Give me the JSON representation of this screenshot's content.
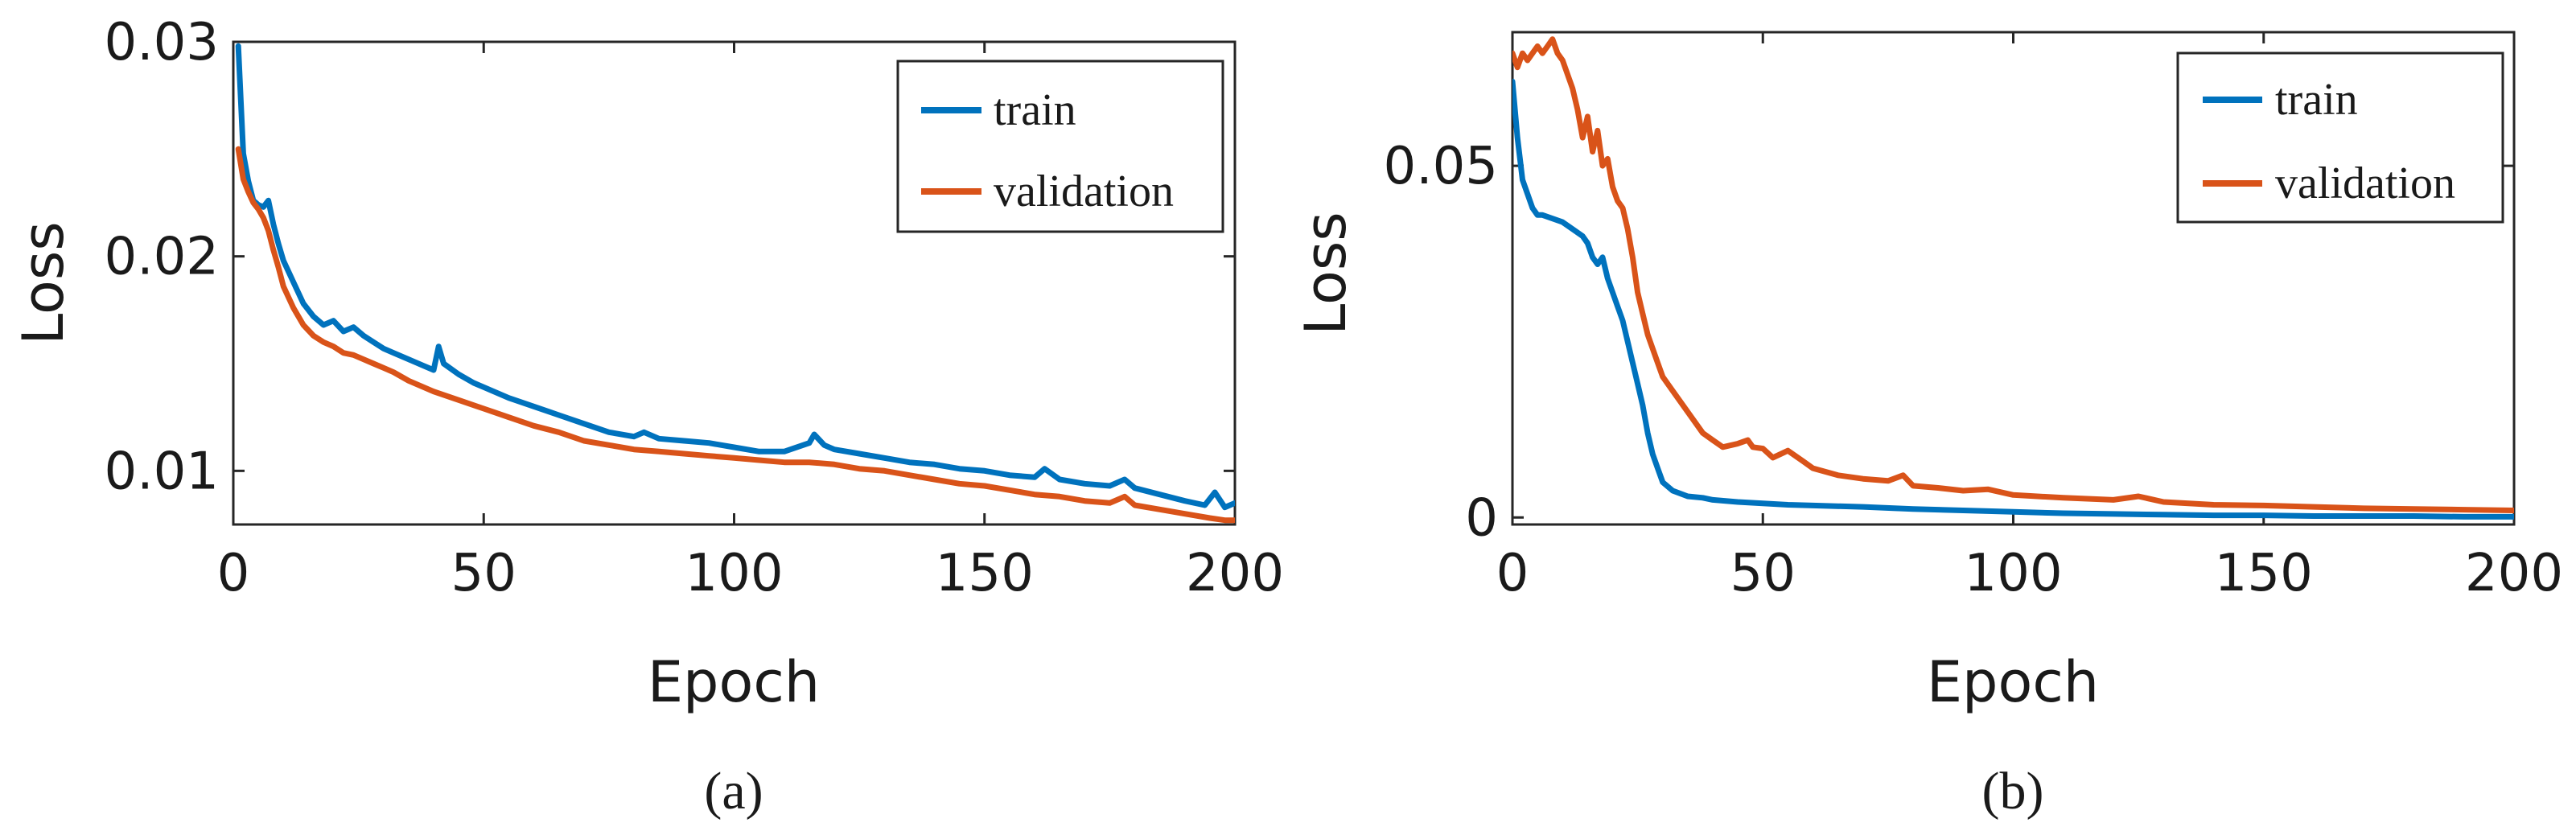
{
  "chart_data": [
    {
      "type": "line",
      "caption": "(a)",
      "title": "",
      "xlabel": "Epoch",
      "ylabel": "Loss",
      "xlim": [
        0,
        200
      ],
      "ylim": [
        0.0075,
        0.03
      ],
      "xticks": [
        0,
        50,
        100,
        150,
        200
      ],
      "yticks": [
        0.01,
        0.02,
        0.03
      ],
      "xtick_labels": [
        "0",
        "50",
        "100",
        "150",
        "200"
      ],
      "ytick_labels": [
        "0.01",
        "0.02",
        "0.03"
      ],
      "legend_position": "top-right",
      "series": [
        {
          "name": "train",
          "color": "#0072BD",
          "points": [
            [
              1,
              0.0298
            ],
            [
              2,
              0.0248
            ],
            [
              3,
              0.0235
            ],
            [
              4,
              0.0226
            ],
            [
              5,
              0.0224
            ],
            [
              6,
              0.0223
            ],
            [
              7,
              0.0226
            ],
            [
              8,
              0.0215
            ],
            [
              9,
              0.0206
            ],
            [
              10,
              0.0198
            ],
            [
              12,
              0.0188
            ],
            [
              14,
              0.0178
            ],
            [
              16,
              0.0172
            ],
            [
              18,
              0.0168
            ],
            [
              20,
              0.017
            ],
            [
              22,
              0.0165
            ],
            [
              24,
              0.0167
            ],
            [
              26,
              0.0163
            ],
            [
              28,
              0.016
            ],
            [
              30,
              0.0157
            ],
            [
              32,
              0.0155
            ],
            [
              35,
              0.0152
            ],
            [
              38,
              0.0149
            ],
            [
              40,
              0.0147
            ],
            [
              41,
              0.0158
            ],
            [
              42,
              0.015
            ],
            [
              45,
              0.0145
            ],
            [
              48,
              0.0141
            ],
            [
              50,
              0.0139
            ],
            [
              55,
              0.0134
            ],
            [
              60,
              0.013
            ],
            [
              65,
              0.0126
            ],
            [
              70,
              0.0122
            ],
            [
              75,
              0.0118
            ],
            [
              80,
              0.0116
            ],
            [
              82,
              0.0118
            ],
            [
              85,
              0.0115
            ],
            [
              90,
              0.0114
            ],
            [
              95,
              0.0113
            ],
            [
              100,
              0.0111
            ],
            [
              105,
              0.0109
            ],
            [
              110,
              0.0109
            ],
            [
              115,
              0.0113
            ],
            [
              116,
              0.0117
            ],
            [
              118,
              0.0112
            ],
            [
              120,
              0.011
            ],
            [
              125,
              0.0108
            ],
            [
              130,
              0.0106
            ],
            [
              135,
              0.0104
            ],
            [
              140,
              0.0103
            ],
            [
              145,
              0.0101
            ],
            [
              150,
              0.01
            ],
            [
              155,
              0.0098
            ],
            [
              160,
              0.0097
            ],
            [
              162,
              0.0101
            ],
            [
              165,
              0.0096
            ],
            [
              170,
              0.0094
            ],
            [
              175,
              0.0093
            ],
            [
              178,
              0.0096
            ],
            [
              180,
              0.0092
            ],
            [
              185,
              0.0089
            ],
            [
              190,
              0.0086
            ],
            [
              194,
              0.0084
            ],
            [
              196,
              0.009
            ],
            [
              198,
              0.0083
            ],
            [
              200,
              0.0085
            ]
          ]
        },
        {
          "name": "validation",
          "color": "#D95319",
          "points": [
            [
              1,
              0.025
            ],
            [
              2,
              0.0236
            ],
            [
              3,
              0.023
            ],
            [
              4,
              0.0225
            ],
            [
              5,
              0.0222
            ],
            [
              6,
              0.0218
            ],
            [
              7,
              0.0212
            ],
            [
              8,
              0.0203
            ],
            [
              9,
              0.0195
            ],
            [
              10,
              0.0186
            ],
            [
              12,
              0.0176
            ],
            [
              14,
              0.0168
            ],
            [
              16,
              0.0163
            ],
            [
              18,
              0.016
            ],
            [
              20,
              0.0158
            ],
            [
              22,
              0.0155
            ],
            [
              24,
              0.0154
            ],
            [
              26,
              0.0152
            ],
            [
              28,
              0.015
            ],
            [
              30,
              0.0148
            ],
            [
              32,
              0.0146
            ],
            [
              35,
              0.0142
            ],
            [
              38,
              0.0139
            ],
            [
              40,
              0.0137
            ],
            [
              45,
              0.0133
            ],
            [
              50,
              0.0129
            ],
            [
              55,
              0.0125
            ],
            [
              60,
              0.0121
            ],
            [
              65,
              0.0118
            ],
            [
              70,
              0.0114
            ],
            [
              75,
              0.0112
            ],
            [
              80,
              0.011
            ],
            [
              85,
              0.0109
            ],
            [
              90,
              0.0108
            ],
            [
              95,
              0.0107
            ],
            [
              100,
              0.0106
            ],
            [
              105,
              0.0105
            ],
            [
              110,
              0.0104
            ],
            [
              115,
              0.0104
            ],
            [
              120,
              0.0103
            ],
            [
              125,
              0.0101
            ],
            [
              130,
              0.01
            ],
            [
              135,
              0.0098
            ],
            [
              140,
              0.0096
            ],
            [
              145,
              0.0094
            ],
            [
              150,
              0.0093
            ],
            [
              155,
              0.0091
            ],
            [
              160,
              0.0089
            ],
            [
              165,
              0.0088
            ],
            [
              170,
              0.0086
            ],
            [
              175,
              0.0085
            ],
            [
              178,
              0.0088
            ],
            [
              180,
              0.0084
            ],
            [
              185,
              0.0082
            ],
            [
              190,
              0.008
            ],
            [
              195,
              0.0078
            ],
            [
              198,
              0.0077
            ],
            [
              200,
              0.0077
            ]
          ]
        }
      ]
    },
    {
      "type": "line",
      "caption": "(b)",
      "title": "",
      "xlabel": "Epoch",
      "ylabel": "Loss",
      "xlim": [
        0,
        200
      ],
      "ylim": [
        -0.001,
        0.069
      ],
      "xticks": [
        0,
        50,
        100,
        150,
        200
      ],
      "yticks": [
        0,
        0.05
      ],
      "xtick_labels": [
        "0",
        "50",
        "100",
        "150",
        "200"
      ],
      "ytick_labels": [
        "0",
        "0.05"
      ],
      "legend_position": "top-right",
      "series": [
        {
          "name": "train",
          "color": "#0072BD",
          "points": [
            [
              0,
              0.062
            ],
            [
              1,
              0.054
            ],
            [
              2,
              0.048
            ],
            [
              3,
              0.046
            ],
            [
              4,
              0.044
            ],
            [
              5,
              0.043
            ],
            [
              6,
              0.043
            ],
            [
              8,
              0.0425
            ],
            [
              10,
              0.042
            ],
            [
              12,
              0.041
            ],
            [
              14,
              0.04
            ],
            [
              15,
              0.039
            ],
            [
              16,
              0.037
            ],
            [
              17,
              0.036
            ],
            [
              18,
              0.037
            ],
            [
              19,
              0.034
            ],
            [
              20,
              0.032
            ],
            [
              21,
              0.03
            ],
            [
              22,
              0.028
            ],
            [
              23,
              0.025
            ],
            [
              24,
              0.022
            ],
            [
              25,
              0.019
            ],
            [
              26,
              0.016
            ],
            [
              27,
              0.012
            ],
            [
              28,
              0.009
            ],
            [
              29,
              0.007
            ],
            [
              30,
              0.005
            ],
            [
              32,
              0.0038
            ],
            [
              35,
              0.003
            ],
            [
              38,
              0.0028
            ],
            [
              40,
              0.0025
            ],
            [
              45,
              0.0022
            ],
            [
              50,
              0.002
            ],
            [
              55,
              0.0018
            ],
            [
              60,
              0.0017
            ],
            [
              70,
              0.0015
            ],
            [
              80,
              0.0012
            ],
            [
              90,
              0.001
            ],
            [
              100,
              0.0008
            ],
            [
              110,
              0.0006
            ],
            [
              120,
              0.0005
            ],
            [
              130,
              0.0004
            ],
            [
              140,
              0.0003
            ],
            [
              150,
              0.0003
            ],
            [
              160,
              0.0002
            ],
            [
              170,
              0.0002
            ],
            [
              180,
              0.0002
            ],
            [
              190,
              0.0001
            ],
            [
              200,
              0.0001
            ]
          ]
        },
        {
          "name": "validation",
          "color": "#D95319",
          "points": [
            [
              0,
              0.066
            ],
            [
              1,
              0.064
            ],
            [
              2,
              0.066
            ],
            [
              3,
              0.065
            ],
            [
              4,
              0.066
            ],
            [
              5,
              0.067
            ],
            [
              6,
              0.066
            ],
            [
              7,
              0.067
            ],
            [
              8,
              0.068
            ],
            [
              9,
              0.066
            ],
            [
              10,
              0.065
            ],
            [
              11,
              0.063
            ],
            [
              12,
              0.061
            ],
            [
              13,
              0.058
            ],
            [
              14,
              0.054
            ],
            [
              15,
              0.057
            ],
            [
              16,
              0.052
            ],
            [
              17,
              0.055
            ],
            [
              18,
              0.05
            ],
            [
              19,
              0.051
            ],
            [
              20,
              0.047
            ],
            [
              21,
              0.045
            ],
            [
              22,
              0.044
            ],
            [
              23,
              0.041
            ],
            [
              24,
              0.037
            ],
            [
              25,
              0.032
            ],
            [
              26,
              0.029
            ],
            [
              27,
              0.026
            ],
            [
              28,
              0.024
            ],
            [
              29,
              0.022
            ],
            [
              30,
              0.02
            ],
            [
              32,
              0.018
            ],
            [
              35,
              0.015
            ],
            [
              38,
              0.012
            ],
            [
              40,
              0.011
            ],
            [
              42,
              0.01
            ],
            [
              45,
              0.0105
            ],
            [
              47,
              0.011
            ],
            [
              48,
              0.01
            ],
            [
              50,
              0.0098
            ],
            [
              52,
              0.0085
            ],
            [
              55,
              0.0095
            ],
            [
              58,
              0.008
            ],
            [
              60,
              0.007
            ],
            [
              65,
              0.006
            ],
            [
              70,
              0.0055
            ],
            [
              75,
              0.0052
            ],
            [
              78,
              0.006
            ],
            [
              80,
              0.0045
            ],
            [
              85,
              0.0042
            ],
            [
              90,
              0.0038
            ],
            [
              95,
              0.004
            ],
            [
              100,
              0.0032
            ],
            [
              110,
              0.0028
            ],
            [
              120,
              0.0025
            ],
            [
              125,
              0.003
            ],
            [
              130,
              0.0022
            ],
            [
              140,
              0.0018
            ],
            [
              150,
              0.0017
            ],
            [
              160,
              0.0015
            ],
            [
              170,
              0.0013
            ],
            [
              180,
              0.0012
            ],
            [
              190,
              0.0011
            ],
            [
              200,
              0.001
            ]
          ]
        }
      ]
    }
  ]
}
